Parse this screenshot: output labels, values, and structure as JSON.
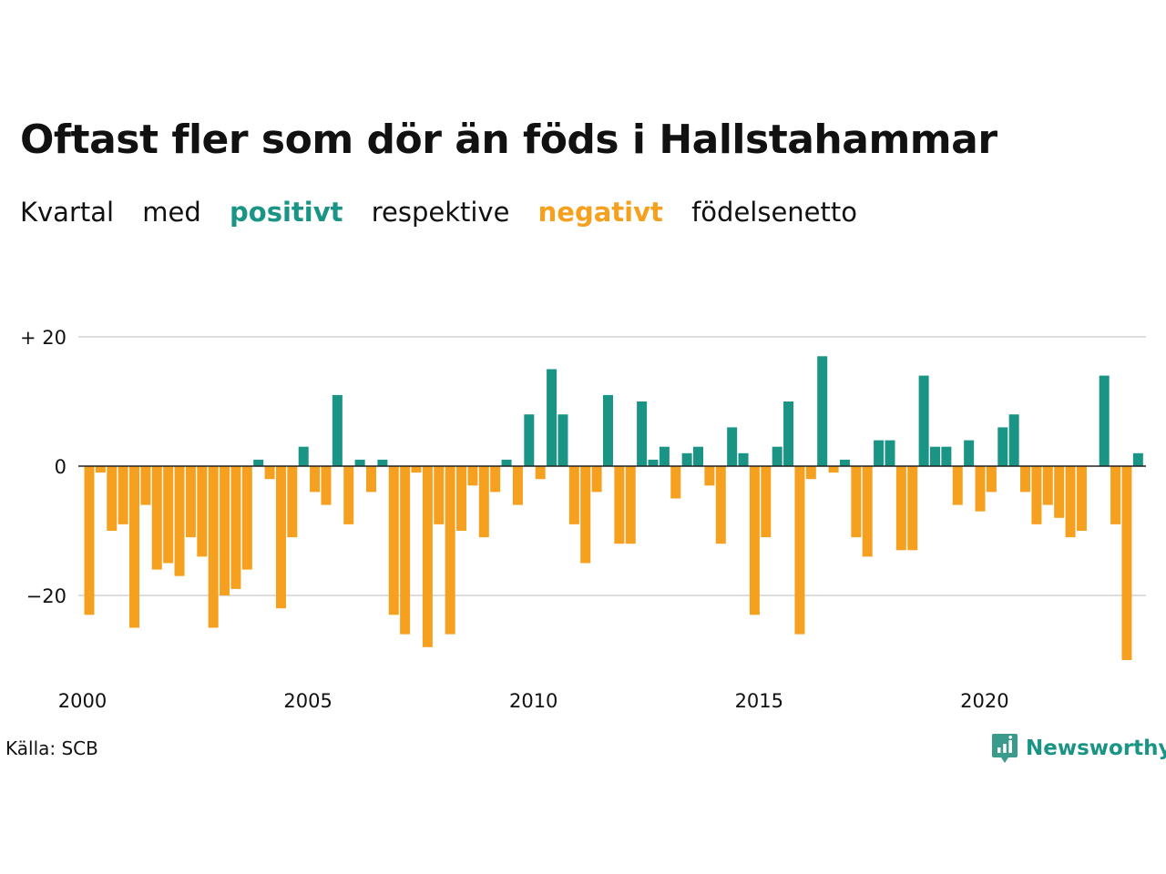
{
  "title": "Oftast fler som dör än föds i Hallstahammar",
  "subtitle": {
    "part1": "Kvartal",
    "part2": "med",
    "positive_word": "positivt",
    "part3": "respektive",
    "negative_word": "negativt",
    "part4": "födelsenetto"
  },
  "colors": {
    "positive": "#1a9485",
    "negative": "#f5a01f",
    "grid": "#dddddd",
    "text": "#111111"
  },
  "source": "Källa: SCB",
  "brand": {
    "name": "Newsworthy",
    "icon": "newsworthy-logo-icon"
  },
  "chart_data": {
    "type": "bar",
    "x_start_year": 2000,
    "x_tick_labels": [
      "2000",
      "2005",
      "2010",
      "2015",
      "2020"
    ],
    "y_ticks": [
      20,
      0,
      -20
    ],
    "y_tick_labels": [
      "+ 20",
      "0",
      "−20"
    ],
    "ylim": [
      -30,
      20
    ],
    "grid": true,
    "values": [
      -23,
      -1,
      -10,
      -9,
      -25,
      -6,
      -16,
      -15,
      -17,
      -11,
      -14,
      -25,
      -20,
      -19,
      -16,
      1,
      -2,
      -22,
      -11,
      3,
      -4,
      -6,
      11,
      -9,
      1,
      -4,
      1,
      -23,
      -26,
      -1,
      -28,
      -9,
      -26,
      -10,
      -3,
      -11,
      -4,
      1,
      -6,
      8,
      -2,
      15,
      8,
      -9,
      -15,
      -4,
      11,
      -12,
      -12,
      10,
      1,
      3,
      -5,
      2,
      3,
      -3,
      -12,
      6,
      2,
      -23,
      -11,
      3,
      10,
      -26,
      -2,
      17,
      -1,
      1,
      -11,
      -14,
      4,
      4,
      -13,
      -13,
      14,
      3,
      3,
      -6,
      4,
      -7,
      -4,
      6,
      8,
      -4,
      -9,
      -6,
      -8,
      -11,
      -10,
      0,
      14,
      -9,
      -30,
      2
    ]
  }
}
